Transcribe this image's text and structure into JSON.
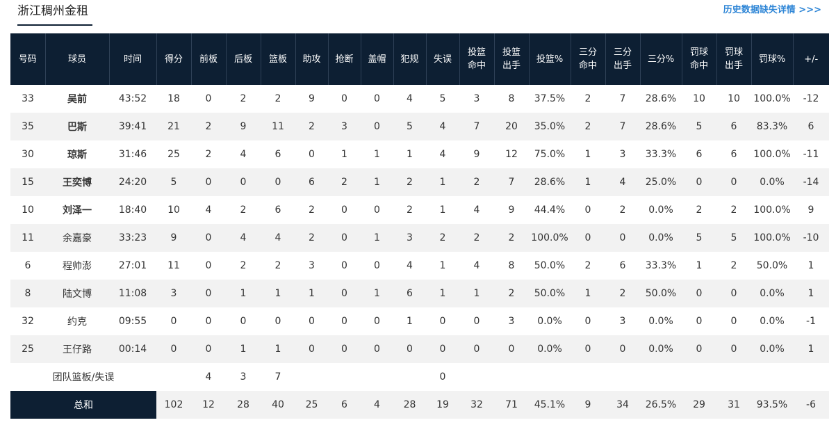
{
  "header": {
    "team_name": "浙江稠州金租",
    "missing_data_link": "历史数据缺失详情 >>>"
  },
  "columns": [
    [
      "号码"
    ],
    [
      "球员"
    ],
    [
      "时间"
    ],
    [
      "得分"
    ],
    [
      "前板"
    ],
    [
      "后板"
    ],
    [
      "篮板"
    ],
    [
      "助攻"
    ],
    [
      "抢断"
    ],
    [
      "盖帽"
    ],
    [
      "犯规"
    ],
    [
      "失误"
    ],
    [
      "投篮",
      "命中"
    ],
    [
      "投篮",
      "出手"
    ],
    [
      "投篮%"
    ],
    [
      "三分",
      "命中"
    ],
    [
      "三分",
      "出手"
    ],
    [
      "三分%"
    ],
    [
      "罚球",
      "命中"
    ],
    [
      "罚球",
      "出手"
    ],
    [
      "罚球%"
    ],
    [
      "+/-"
    ]
  ],
  "players": [
    {
      "starter": true,
      "cells": [
        "33",
        "吴前",
        "43:52",
        "18",
        "0",
        "2",
        "2",
        "9",
        "0",
        "0",
        "4",
        "5",
        "3",
        "8",
        "37.5%",
        "2",
        "7",
        "28.6%",
        "10",
        "10",
        "100.0%",
        "-12"
      ]
    },
    {
      "starter": true,
      "cells": [
        "35",
        "巴斯",
        "39:41",
        "21",
        "2",
        "9",
        "11",
        "2",
        "3",
        "0",
        "5",
        "4",
        "7",
        "20",
        "35.0%",
        "2",
        "7",
        "28.6%",
        "5",
        "6",
        "83.3%",
        "6"
      ]
    },
    {
      "starter": true,
      "cells": [
        "30",
        "琼斯",
        "31:46",
        "25",
        "2",
        "4",
        "6",
        "0",
        "1",
        "1",
        "1",
        "4",
        "9",
        "12",
        "75.0%",
        "1",
        "3",
        "33.3%",
        "6",
        "6",
        "100.0%",
        "-11"
      ]
    },
    {
      "starter": true,
      "cells": [
        "15",
        "王奕博",
        "24:20",
        "5",
        "0",
        "0",
        "0",
        "6",
        "2",
        "1",
        "2",
        "1",
        "2",
        "7",
        "28.6%",
        "1",
        "4",
        "25.0%",
        "0",
        "0",
        "0.0%",
        "-14"
      ]
    },
    {
      "starter": true,
      "cells": [
        "10",
        "刘泽一",
        "18:40",
        "10",
        "4",
        "2",
        "6",
        "2",
        "0",
        "0",
        "2",
        "1",
        "4",
        "9",
        "44.4%",
        "0",
        "2",
        "0.0%",
        "2",
        "2",
        "100.0%",
        "9"
      ]
    },
    {
      "starter": false,
      "cells": [
        "11",
        "余嘉豪",
        "33:23",
        "9",
        "0",
        "4",
        "4",
        "2",
        "0",
        "1",
        "3",
        "2",
        "2",
        "2",
        "100.0%",
        "0",
        "0",
        "0.0%",
        "5",
        "5",
        "100.0%",
        "-10"
      ]
    },
    {
      "starter": false,
      "cells": [
        "6",
        "程帅澎",
        "27:01",
        "11",
        "0",
        "2",
        "2",
        "3",
        "0",
        "0",
        "4",
        "1",
        "4",
        "8",
        "50.0%",
        "2",
        "6",
        "33.3%",
        "1",
        "2",
        "50.0%",
        "1"
      ]
    },
    {
      "starter": false,
      "cells": [
        "8",
        "陆文博",
        "11:08",
        "3",
        "0",
        "1",
        "1",
        "1",
        "0",
        "1",
        "6",
        "1",
        "1",
        "2",
        "50.0%",
        "1",
        "2",
        "50.0%",
        "0",
        "0",
        "0.0%",
        "1"
      ]
    },
    {
      "starter": false,
      "cells": [
        "32",
        "约克",
        "09:55",
        "0",
        "0",
        "0",
        "0",
        "0",
        "0",
        "0",
        "1",
        "0",
        "0",
        "3",
        "0.0%",
        "0",
        "3",
        "0.0%",
        "0",
        "0",
        "0.0%",
        "-1"
      ]
    },
    {
      "starter": false,
      "cells": [
        "25",
        "王仔路",
        "00:14",
        "0",
        "0",
        "1",
        "1",
        "0",
        "0",
        "0",
        "0",
        "0",
        "0",
        "0",
        "0.0%",
        "0",
        "0",
        "0.0%",
        "0",
        "0",
        "0.0%",
        "1"
      ]
    }
  ],
  "team_row": {
    "label": "团队篮板/失误",
    "cells": [
      "",
      "4",
      "3",
      "7",
      "",
      "",
      "",
      "",
      "0",
      "",
      "",
      "",
      "",
      "",
      "",
      "",
      "",
      "",
      ""
    ]
  },
  "total_row": {
    "label": "总和",
    "cells": [
      "102",
      "12",
      "28",
      "40",
      "25",
      "6",
      "4",
      "28",
      "19",
      "32",
      "71",
      "45.1%",
      "9",
      "34",
      "26.5%",
      "29",
      "31",
      "93.5%",
      "-6"
    ]
  },
  "colors": {
    "header_bg": "#0d1f33",
    "link": "#2f86d6",
    "stripe": "#f2f2f2"
  }
}
